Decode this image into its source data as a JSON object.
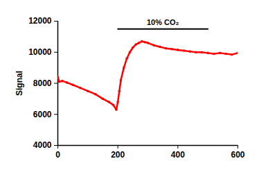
{
  "chart_data": {
    "type": "line",
    "ylabel": "Signal",
    "x": [
      0,
      5,
      15,
      30,
      50,
      75,
      100,
      125,
      150,
      170,
      185,
      195,
      200,
      205,
      210,
      220,
      230,
      240,
      250,
      260,
      270,
      280,
      290,
      300,
      320,
      340,
      360,
      380,
      400,
      420,
      440,
      460,
      480,
      500,
      520,
      540,
      560,
      580,
      600
    ],
    "values": [
      8400,
      8100,
      8150,
      8050,
      7900,
      7700,
      7500,
      7300,
      7000,
      6800,
      6600,
      6300,
      6800,
      7500,
      8200,
      9000,
      9600,
      10000,
      10300,
      10500,
      10600,
      10700,
      10650,
      10600,
      10450,
      10350,
      10250,
      10200,
      10150,
      10100,
      10050,
      10000,
      10000,
      9950,
      9900,
      9950,
      9900,
      9850,
      9950
    ],
    "color": "#ff0000",
    "marker": "circle",
    "xlim": [
      0,
      600
    ],
    "xticks": [
      0,
      200,
      400,
      600
    ],
    "ylim": [
      4000,
      12000
    ],
    "yticks": [
      4000,
      6000,
      8000,
      10000,
      12000
    ],
    "grid": false,
    "annotations": [
      {
        "text": "10% CO₂",
        "x_start": 200,
        "x_end": 500,
        "y": 11500
      }
    ]
  }
}
